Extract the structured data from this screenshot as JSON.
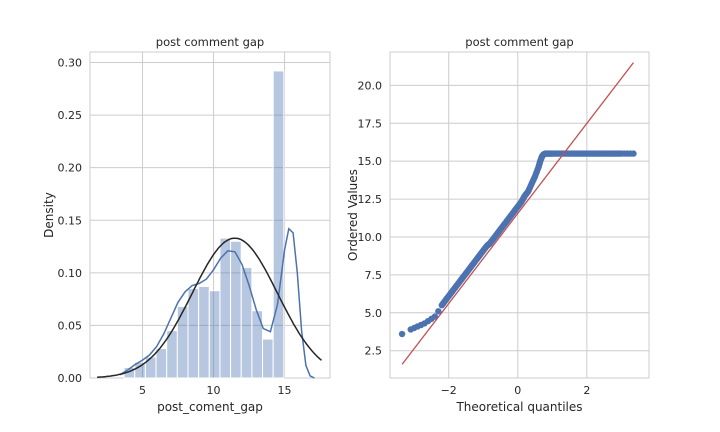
{
  "figure": {
    "background": "#ffffff"
  },
  "chart_data": [
    {
      "type": "bar",
      "title": "post comment gap",
      "xlabel": "post_coment_gap",
      "ylabel": "Density",
      "xlim": [
        1.3,
        18.2
      ],
      "ylim": [
        0,
        0.31
      ],
      "xticks": [
        5,
        10,
        15
      ],
      "yticks": [
        0.0,
        0.05,
        0.1,
        0.15,
        0.2,
        0.25,
        0.3
      ],
      "ytick_labels": [
        "0.00",
        "0.05",
        "0.10",
        "0.15",
        "0.20",
        "0.25",
        "0.30"
      ],
      "grid": true,
      "histogram": {
        "bin_edges": [
          3.7,
          4.45,
          5.2,
          5.95,
          6.7,
          7.45,
          8.2,
          8.95,
          9.7,
          10.45,
          11.2,
          11.95,
          12.7,
          13.45,
          14.2,
          14.95,
          15.7
        ],
        "density": [
          0.01,
          0.015,
          0.02,
          0.028,
          0.045,
          0.068,
          0.085,
          0.087,
          0.083,
          0.133,
          0.13,
          0.105,
          0.064,
          0.037,
          0.292,
          0.0
        ],
        "color": "#4c72b0"
      },
      "series": [
        {
          "kind": "kde",
          "color": "#4c72b0",
          "x": [
            3.4,
            4.0,
            4.5,
            5.0,
            5.5,
            6.0,
            6.5,
            7.0,
            7.5,
            8.0,
            8.5,
            9.0,
            9.5,
            10.0,
            10.5,
            11.0,
            11.5,
            12.0,
            12.5,
            13.0,
            13.5,
            14.0,
            14.5,
            15.0,
            15.3,
            15.6,
            15.9,
            16.2,
            16.5,
            16.8,
            17.1
          ],
          "y": [
            0.003,
            0.008,
            0.013,
            0.017,
            0.022,
            0.03,
            0.042,
            0.057,
            0.072,
            0.082,
            0.088,
            0.09,
            0.094,
            0.103,
            0.114,
            0.121,
            0.12,
            0.108,
            0.088,
            0.065,
            0.047,
            0.044,
            0.07,
            0.122,
            0.142,
            0.138,
            0.1,
            0.045,
            0.012,
            0.002,
            0.0
          ]
        },
        {
          "kind": "normal_fit",
          "color": "#262626",
          "mean": 11.5,
          "std": 3.0
        }
      ]
    },
    {
      "type": "scatter",
      "title": "post comment gap",
      "xlabel": "Theoretical quantiles",
      "ylabel": "Ordered Values",
      "xlim": [
        -3.7,
        3.8
      ],
      "ylim": [
        0.7,
        22.2
      ],
      "xticks": [
        -2,
        0,
        2
      ],
      "xtick_labels": [
        "−2",
        "0",
        "2"
      ],
      "yticks": [
        2.5,
        5.0,
        7.5,
        10.0,
        12.5,
        15.0,
        17.5,
        20.0
      ],
      "ytick_labels": [
        "2.5",
        "5.0",
        "7.5",
        "10.0",
        "12.5",
        "15.0",
        "17.5",
        "20.0"
      ],
      "grid": true,
      "points": {
        "color": "#4c72b0",
        "x": [
          -3.35,
          -3.1,
          -3.0,
          -2.9,
          -2.8,
          -2.7,
          -2.6,
          -2.5,
          -2.4,
          -2.3,
          -2.2,
          -2.1,
          -2.0,
          -1.9,
          -1.8,
          -1.7,
          -1.6,
          -1.5,
          -1.4,
          -1.3,
          -1.2,
          -1.1,
          -1.0,
          -0.9,
          -0.8,
          -0.7,
          -0.6,
          -0.5,
          -0.4,
          -0.3,
          -0.2,
          -0.1,
          0.0,
          0.1,
          0.2,
          0.3,
          0.4,
          0.5,
          0.6,
          0.65,
          0.7,
          0.75,
          0.8,
          0.9,
          1.0,
          1.2,
          1.4,
          1.6,
          1.8,
          2.0,
          2.2,
          2.4,
          2.6,
          2.8,
          3.0,
          3.35
        ],
        "y": [
          3.6,
          3.9,
          4.0,
          4.1,
          4.2,
          4.3,
          4.45,
          4.6,
          4.75,
          5.1,
          5.5,
          5.8,
          6.1,
          6.4,
          6.7,
          7.0,
          7.3,
          7.6,
          7.9,
          8.2,
          8.5,
          8.8,
          9.1,
          9.4,
          9.6,
          9.9,
          10.2,
          10.5,
          10.8,
          11.1,
          11.4,
          11.7,
          12.0,
          12.3,
          12.7,
          13.0,
          13.5,
          14.0,
          14.6,
          15.0,
          15.3,
          15.45,
          15.5,
          15.5,
          15.5,
          15.5,
          15.5,
          15.5,
          15.5,
          15.5,
          15.5,
          15.5,
          15.5,
          15.5,
          15.5,
          15.5
        ]
      },
      "series": [
        {
          "kind": "fit_line",
          "color": "#c44e52",
          "x": [
            -3.35,
            3.35
          ],
          "y": [
            1.6,
            21.5
          ]
        }
      ]
    }
  ]
}
